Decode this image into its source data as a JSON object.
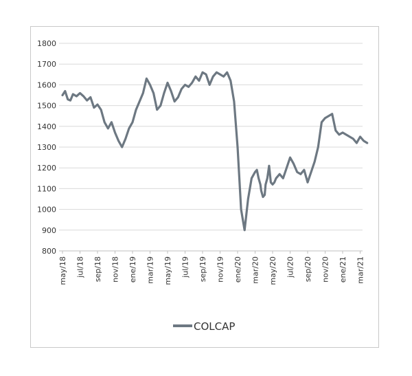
{
  "chart_data": {
    "type": "line",
    "title": "",
    "xlabel": "",
    "ylabel": "",
    "ylim": [
      800,
      1800
    ],
    "yticks": [
      800,
      900,
      1000,
      1100,
      1200,
      1300,
      1400,
      1500,
      1600,
      1700,
      1800
    ],
    "xtick_labels": [
      "may/18",
      "jul/18",
      "sep/18",
      "nov/18",
      "ene/19",
      "mar/19",
      "may/19",
      "jul/19",
      "sep/19",
      "nov/19",
      "ene/20",
      "mar/20",
      "may/20",
      "jul/20",
      "sep/20",
      "nov/20",
      "ene/21",
      "mar/21"
    ],
    "grid": true,
    "legend_position": "bottom",
    "series": [
      {
        "name": "COLCAP",
        "color": "#6d7882",
        "x": [
          0,
          0.15,
          0.3,
          0.45,
          0.6,
          0.8,
          1.0,
          1.2,
          1.4,
          1.6,
          1.8,
          2.0,
          2.2,
          2.4,
          2.6,
          2.8,
          3.0,
          3.2,
          3.4,
          3.6,
          3.8,
          4.0,
          4.2,
          4.4,
          4.6,
          4.8,
          5.0,
          5.2,
          5.4,
          5.6,
          5.8,
          6.0,
          6.2,
          6.4,
          6.6,
          6.8,
          7.0,
          7.2,
          7.4,
          7.6,
          7.8,
          8.0,
          8.2,
          8.4,
          8.6,
          8.8,
          9.0,
          9.2,
          9.4,
          9.6,
          9.8,
          10.0,
          10.2,
          10.4,
          10.6,
          10.8,
          11.0,
          11.1,
          11.2,
          11.3,
          11.35,
          11.45,
          11.55,
          11.6,
          11.7,
          11.8,
          11.9,
          12.0,
          12.1,
          12.2,
          12.4,
          12.6,
          12.8,
          13.0,
          13.2,
          13.4,
          13.6,
          13.8,
          14.0,
          14.2,
          14.4,
          14.6,
          14.8,
          15.0,
          15.2,
          15.4,
          15.6,
          15.8,
          16.0,
          16.2,
          16.4,
          16.6,
          16.8,
          17.0,
          17.2,
          17.4
        ],
        "y": [
          1550,
          1570,
          1530,
          1525,
          1555,
          1545,
          1560,
          1545,
          1525,
          1540,
          1490,
          1505,
          1480,
          1420,
          1390,
          1420,
          1370,
          1330,
          1300,
          1340,
          1390,
          1420,
          1480,
          1520,
          1560,
          1630,
          1600,
          1560,
          1480,
          1500,
          1560,
          1610,
          1570,
          1520,
          1540,
          1580,
          1600,
          1590,
          1610,
          1640,
          1620,
          1660,
          1650,
          1600,
          1640,
          1660,
          1650,
          1640,
          1660,
          1620,
          1520,
          1300,
          1000,
          900,
          1050,
          1150,
          1180,
          1190,
          1150,
          1120,
          1090,
          1060,
          1070,
          1120,
          1150,
          1210,
          1130,
          1120,
          1130,
          1150,
          1170,
          1150,
          1200,
          1250,
          1220,
          1180,
          1170,
          1190,
          1130,
          1180,
          1230,
          1300,
          1420,
          1440,
          1450,
          1460,
          1380,
          1360,
          1370,
          1360,
          1350,
          1340,
          1320,
          1350,
          1330,
          1320
        ]
      }
    ]
  }
}
